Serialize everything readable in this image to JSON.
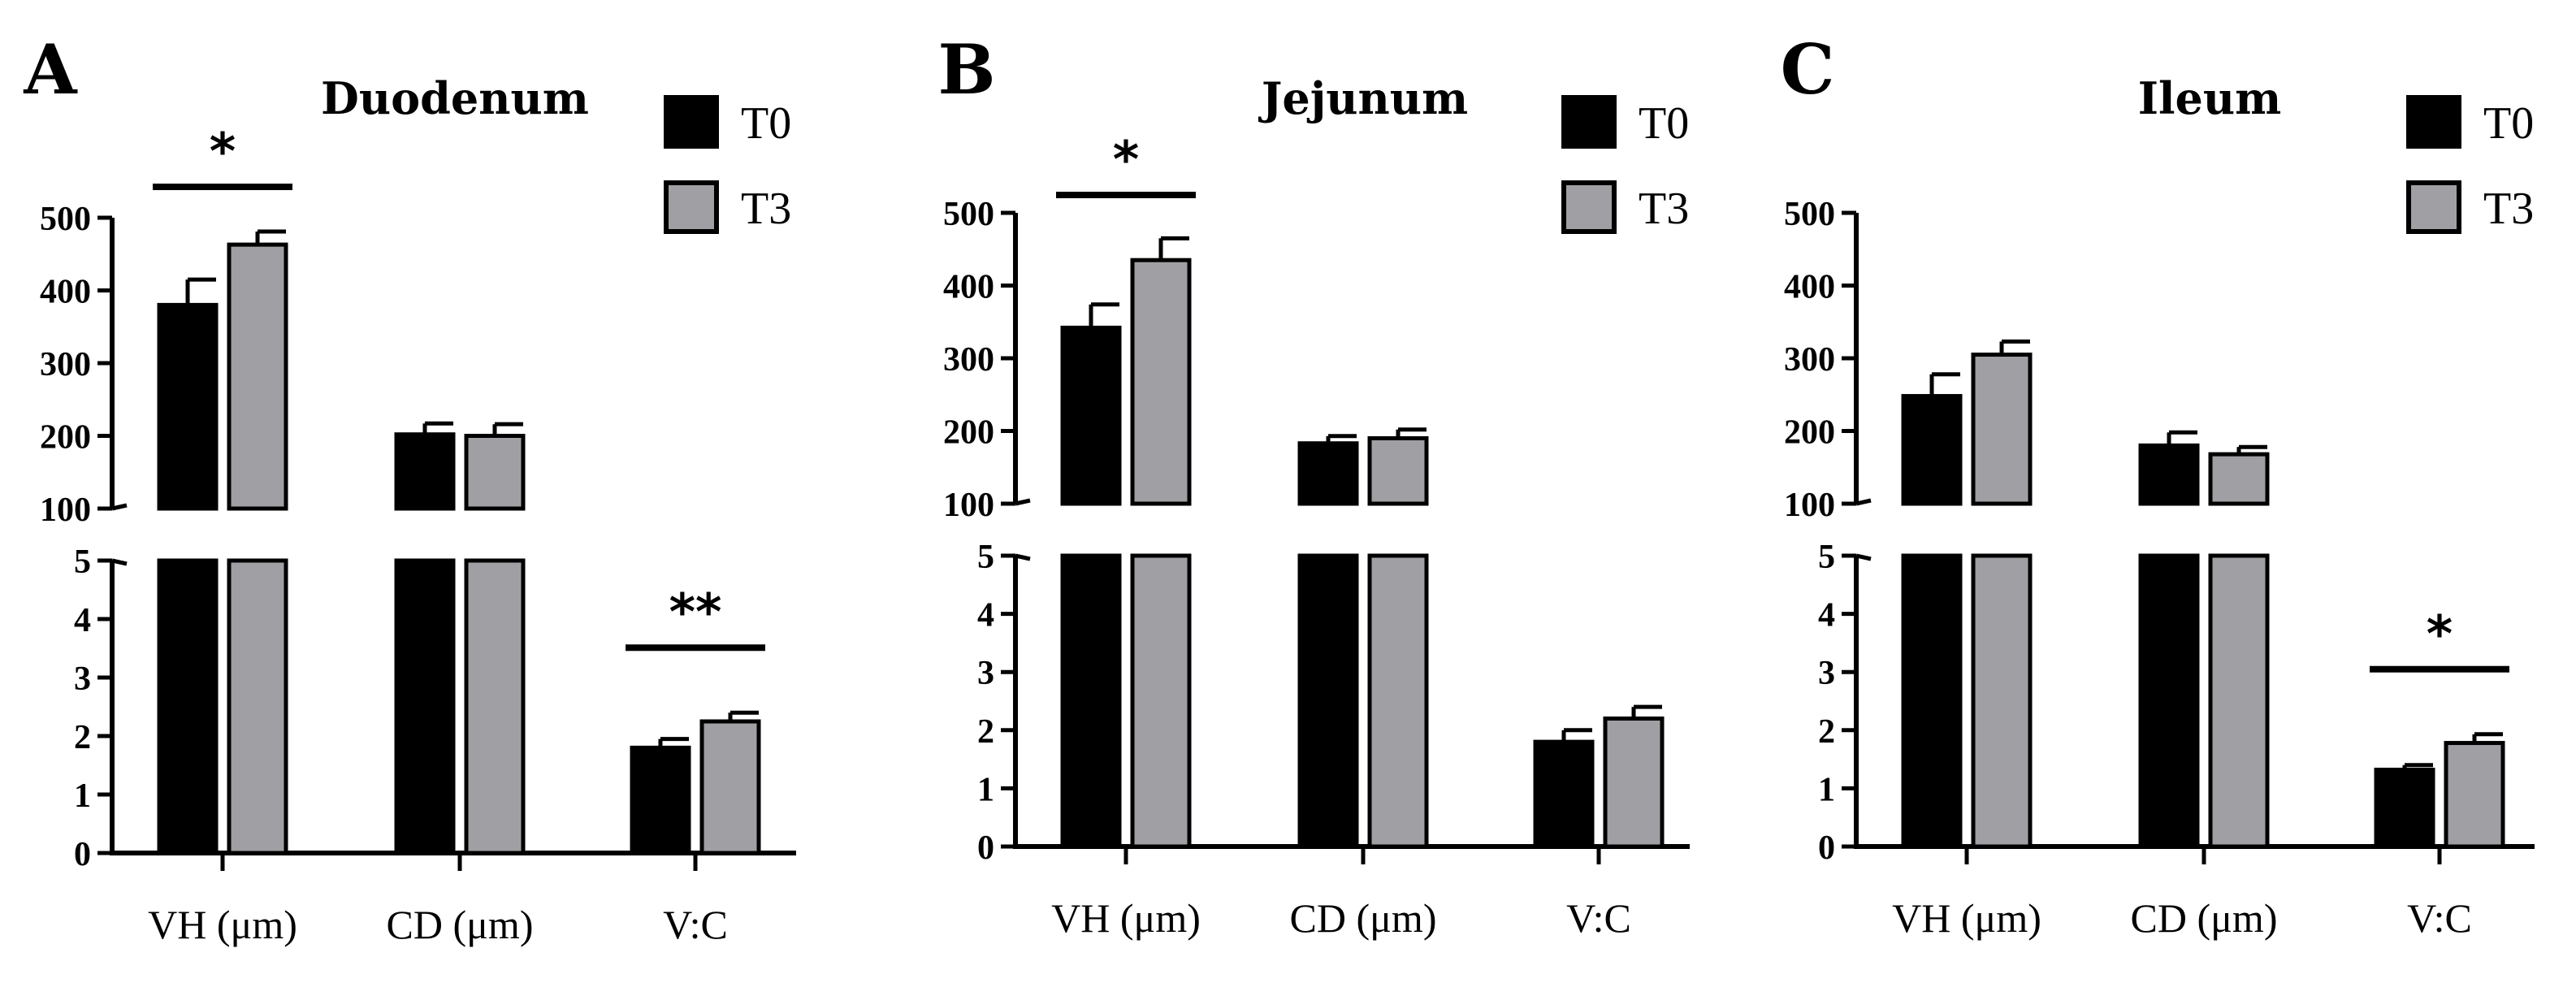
{
  "chart_data": [
    {
      "type": "bar",
      "panel": "A",
      "title": "Duodenum",
      "categories": [
        "VH (μm)",
        "CD (μm)",
        "V:C"
      ],
      "series": [
        {
          "name": "T0",
          "color": "#000000",
          "values": [
            380,
            202,
            1.8
          ],
          "errors": [
            35,
            15,
            0.15
          ]
        },
        {
          "name": "T3",
          "color": "#a0a0a4",
          "values": [
            463,
            200,
            2.25
          ],
          "errors": [
            18,
            16,
            0.15
          ]
        }
      ],
      "upper_ticks": [
        "100",
        "200",
        "300",
        "400",
        "500"
      ],
      "lower_ticks": [
        "0",
        "1",
        "2",
        "3",
        "4",
        "5"
      ],
      "upper_range": [
        100,
        500
      ],
      "lower_range": [
        0,
        5
      ],
      "significance": [
        {
          "category_index": 0,
          "label": "*"
        },
        {
          "category_index": 2,
          "label": "**"
        }
      ]
    },
    {
      "type": "bar",
      "panel": "B",
      "title": "Jejunum",
      "categories": [
        "VH (μm)",
        "CD (μm)",
        "V:C"
      ],
      "series": [
        {
          "name": "T0",
          "color": "#000000",
          "values": [
            342,
            183,
            1.8
          ],
          "errors": [
            32,
            10,
            0.2
          ]
        },
        {
          "name": "T3",
          "color": "#a0a0a4",
          "values": [
            435,
            190,
            2.2
          ],
          "errors": [
            30,
            12,
            0.2
          ]
        }
      ],
      "upper_ticks": [
        "100",
        "200",
        "300",
        "400",
        "500"
      ],
      "lower_ticks": [
        "0",
        "1",
        "2",
        "3",
        "4",
        "5"
      ],
      "upper_range": [
        100,
        500
      ],
      "lower_range": [
        0,
        5
      ],
      "significance": [
        {
          "category_index": 0,
          "label": "*"
        }
      ]
    },
    {
      "type": "bar",
      "panel": "C",
      "title": "Ileum",
      "categories": [
        "VH (μm)",
        "CD (μm)",
        "V:C"
      ],
      "series": [
        {
          "name": "T0",
          "color": "#000000",
          "values": [
            248,
            180,
            1.32
          ],
          "errors": [
            30,
            18,
            0.08
          ]
        },
        {
          "name": "T3",
          "color": "#a0a0a4",
          "values": [
            305,
            168,
            1.78
          ],
          "errors": [
            18,
            10,
            0.15
          ]
        }
      ],
      "upper_ticks": [
        "100",
        "200",
        "300",
        "400",
        "500"
      ],
      "lower_ticks": [
        "0",
        "1",
        "2",
        "3",
        "4",
        "5"
      ],
      "upper_range": [
        100,
        500
      ],
      "lower_range": [
        0,
        5
      ],
      "significance": [
        {
          "category_index": 2,
          "label": "*"
        }
      ]
    }
  ]
}
